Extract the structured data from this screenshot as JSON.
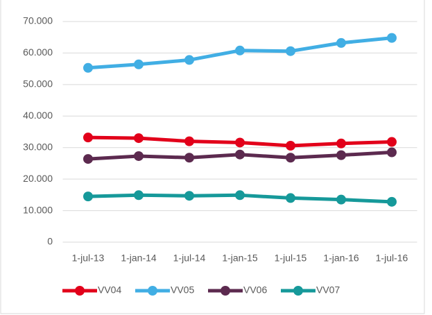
{
  "chart_data": {
    "type": "line",
    "categories": [
      "1-jul-13",
      "1-jan-14",
      "1-jul-14",
      "1-jan-15",
      "1-jul-15",
      "1-jan-16",
      "1-jul-16"
    ],
    "series": [
      {
        "name": "VV04",
        "color": "#e2001a",
        "values": [
          33200,
          33000,
          32000,
          31600,
          30600,
          31300,
          31800
        ]
      },
      {
        "name": "VV05",
        "color": "#41aee4",
        "values": [
          55300,
          56400,
          57800,
          60800,
          60600,
          63200,
          64800
        ]
      },
      {
        "name": "VV06",
        "color": "#5c2a4f",
        "values": [
          26400,
          27300,
          26800,
          27800,
          26800,
          27600,
          28500
        ]
      },
      {
        "name": "VV07",
        "color": "#16999a",
        "values": [
          14500,
          14900,
          14700,
          14900,
          14000,
          13500,
          12800
        ]
      }
    ],
    "ylim": [
      0,
      70000
    ],
    "yticks": [
      0,
      {
        "value": 10000,
        "label": "10.000"
      },
      {
        "value": 20000,
        "label": "20.000"
      },
      {
        "value": 30000,
        "label": "30.000"
      },
      {
        "value": 40000,
        "label": "40.000"
      },
      {
        "value": 50000,
        "label": "50.000"
      },
      {
        "value": 60000,
        "label": "60.000"
      },
      {
        "value": 70000,
        "label": "70.000"
      }
    ],
    "grid": true,
    "legend": "bottom"
  }
}
